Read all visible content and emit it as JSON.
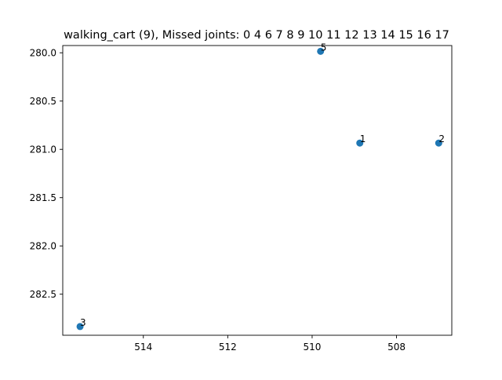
{
  "chart_data": {
    "type": "scatter",
    "title": "walking_cart (9), Missed joints: 0 4 6 7 8 9 10 11 12 13 14 15 16 17",
    "xlabel": "",
    "ylabel": "",
    "x_inverted": true,
    "y_inverted": true,
    "xlim": [
      515.91,
      506.69
    ],
    "ylim": [
      282.925,
      279.925
    ],
    "x_ticks": [
      514,
      512,
      510,
      508
    ],
    "x_tick_labels": [
      "514",
      "512",
      "510",
      "508"
    ],
    "y_ticks": [
      280.0,
      280.5,
      281.0,
      281.5,
      282.0,
      282.5
    ],
    "y_tick_labels": [
      "280.0",
      "280.5",
      "281.0",
      "281.5",
      "282.0",
      "282.5"
    ],
    "grid": false,
    "legend": false,
    "marker_color": "#1f77b4",
    "points": [
      {
        "label": "5",
        "x": 509.8,
        "y": 279.985
      },
      {
        "label": "1",
        "x": 508.87,
        "y": 280.935
      },
      {
        "label": "2",
        "x": 507.0,
        "y": 280.935
      },
      {
        "label": "3",
        "x": 515.5,
        "y": 282.835
      }
    ]
  }
}
